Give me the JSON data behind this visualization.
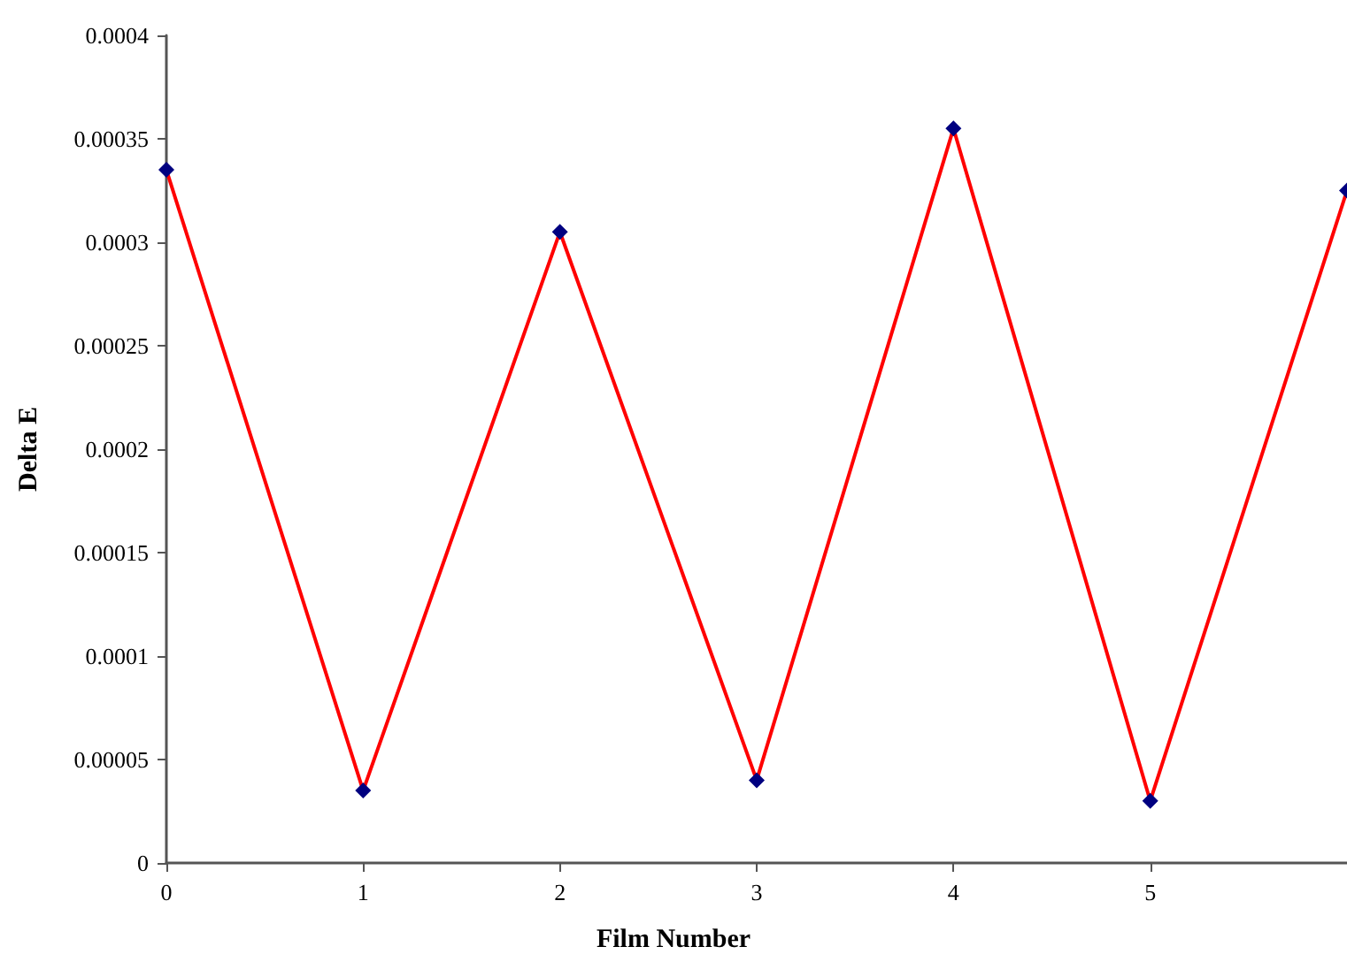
{
  "chart_data": {
    "type": "line",
    "xlabel": "Film Number",
    "ylabel": "Delta E",
    "x": [
      0,
      1,
      2,
      3,
      4,
      5,
      6
    ],
    "series": [
      {
        "color": "#ff0000",
        "values": [
          0.000335,
          3.5e-05,
          0.000305,
          4e-05,
          0.000355,
          3e-05,
          0.000325
        ]
      }
    ],
    "xlim": [
      0,
      6
    ],
    "xticks": [
      0,
      1,
      2,
      3,
      4,
      5
    ],
    "ylim": [
      0,
      0.0004
    ],
    "yticks": [
      0,
      {
        "value": 5e-05,
        "label": "0.00005"
      },
      0.0001,
      0.00015,
      0.0002,
      0.00025,
      0.0003,
      0.00035,
      0.0004
    ],
    "marker": "diamond",
    "grid": false
  }
}
